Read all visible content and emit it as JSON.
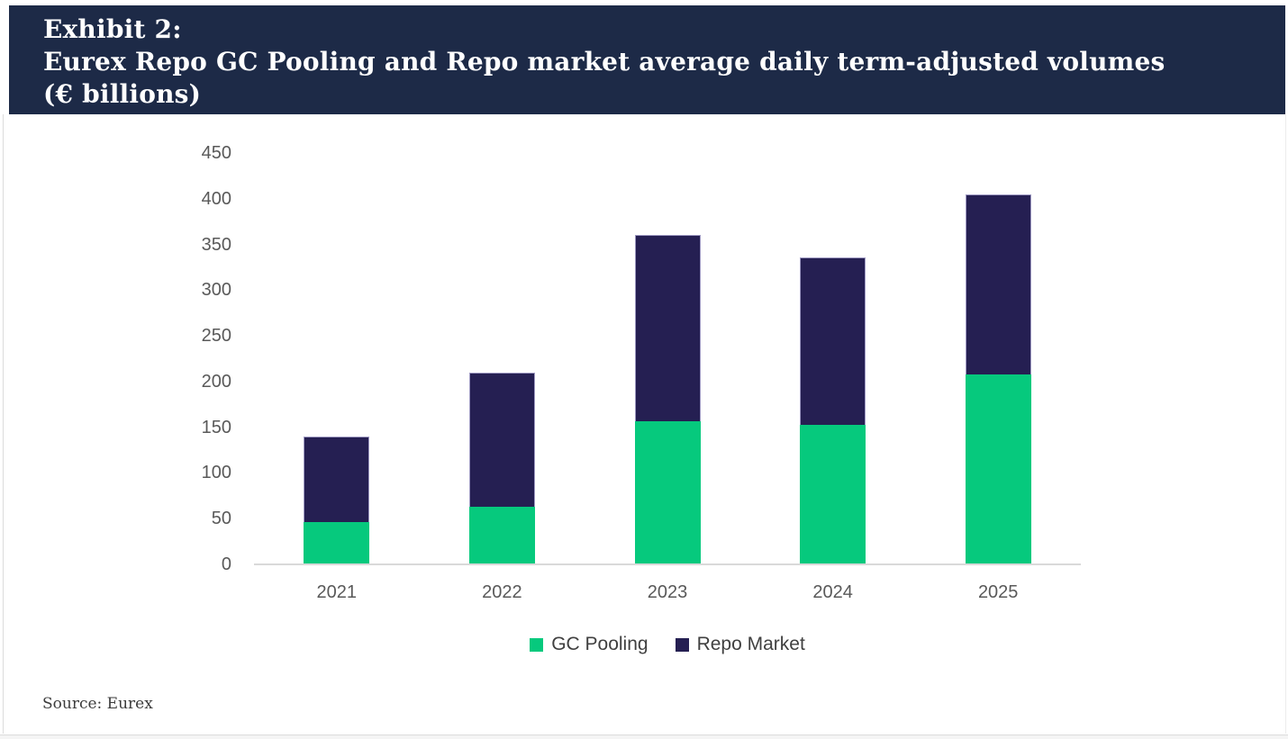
{
  "header": {
    "line1": "Exhibit 2:",
    "line2": "Eurex Repo GC Pooling and Repo market average daily term-adjusted volumes",
    "line3": "(€ billions)"
  },
  "source_note": "Source: Eurex",
  "chart_data": {
    "type": "bar",
    "stacked": true,
    "title": "Eurex Repo GC Pooling and Repo market average daily term-adjusted volumes (€ billions)",
    "categories": [
      "2021",
      "2022",
      "2023",
      "2024",
      "2025"
    ],
    "series": [
      {
        "name": "GC Pooling",
        "color": "#06C97D",
        "values": [
          46,
          63,
          157,
          153,
          208
        ]
      },
      {
        "name": "Repo Market",
        "color": "#251F52",
        "values": [
          94,
          147,
          203,
          183,
          197
        ]
      }
    ],
    "stack_totals": [
      140,
      210,
      360,
      336,
      405
    ],
    "xlabel": "",
    "ylabel": "",
    "ylim": [
      0,
      450
    ],
    "yticks": [
      450,
      400,
      350,
      300,
      250,
      200,
      150,
      100,
      50,
      0
    ],
    "grid": false,
    "legend_position": "bottom",
    "colors": {
      "header_bg": "#1D2A47",
      "header_text": "#FFFFFF",
      "axis_text": "#595959",
      "axis_line": "#D9D9D9",
      "legend_text": "#404040"
    }
  }
}
